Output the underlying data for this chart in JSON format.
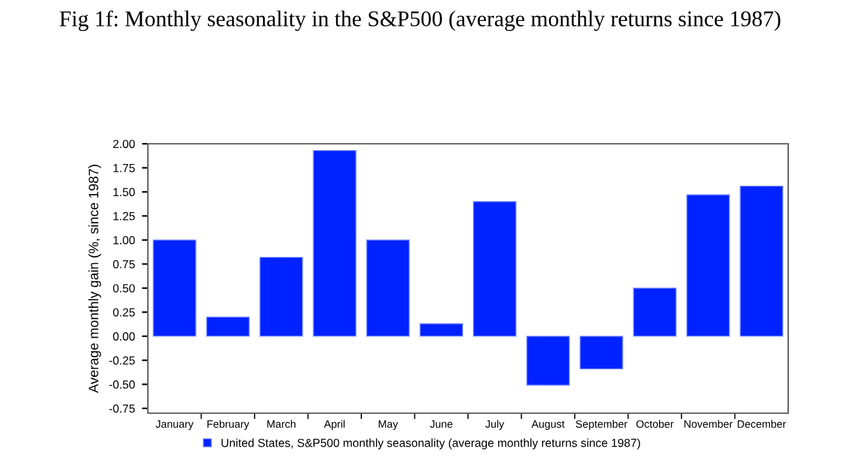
{
  "chart_data": {
    "type": "bar",
    "title": "Fig 1f: Monthly seasonality in the S&P500 (average monthly returns since 1987)",
    "ylabel": "Average monthly gain (%, since 1987)",
    "categories": [
      "January",
      "February",
      "March",
      "April",
      "May",
      "June",
      "July",
      "August",
      "September",
      "October",
      "November",
      "December"
    ],
    "series": [
      {
        "name": "United States, S&P500 monthly seasonality (average monthly returns since 1987)",
        "color": "#0022ff",
        "values": [
          1.0,
          0.2,
          0.82,
          1.93,
          1.0,
          0.13,
          1.4,
          -0.51,
          -0.34,
          0.5,
          1.47,
          1.56
        ]
      }
    ],
    "ylim": [
      -0.8,
      2.0
    ],
    "yticks": [
      {
        "value": -0.75,
        "label": "-0.75"
      },
      {
        "value": -0.5,
        "label": "-0.50"
      },
      {
        "value": -0.25,
        "label": "-0.25"
      },
      {
        "value": 0,
        "label": "0.00"
      },
      {
        "value": 0.25,
        "label": "0.25"
      },
      {
        "value": 0.5,
        "label": "0.50"
      },
      {
        "value": 0.75,
        "label": "0.75"
      },
      {
        "value": 1,
        "label": "1.00"
      },
      {
        "value": 1.25,
        "label": "1.25"
      },
      {
        "value": 1.5,
        "label": "1.50"
      },
      {
        "value": 1.75,
        "label": "1.75"
      },
      {
        "value": 2,
        "label": "2.00"
      }
    ],
    "grid": false,
    "legend": "bottom"
  }
}
